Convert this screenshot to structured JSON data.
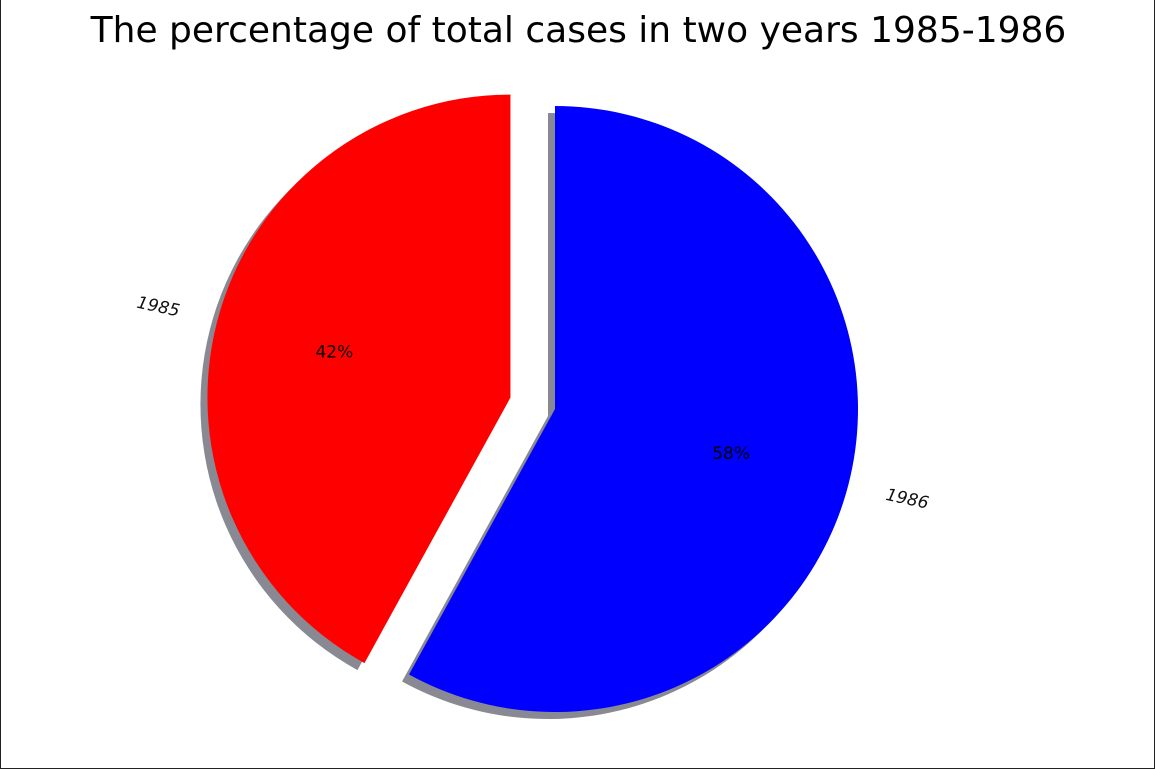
{
  "chart_data": {
    "type": "pie",
    "title": "The percentage of total cases in two years 1985-1986",
    "slices": [
      {
        "label": "1985",
        "value": 42,
        "pct_label": "42%",
        "color": "#ff0000",
        "exploded": true
      },
      {
        "label": "1986",
        "value": 58,
        "pct_label": "58%",
        "color": "#0000ff",
        "exploded": false
      }
    ],
    "start_angle_deg": 90,
    "counterclockwise": true,
    "shadow": true
  }
}
